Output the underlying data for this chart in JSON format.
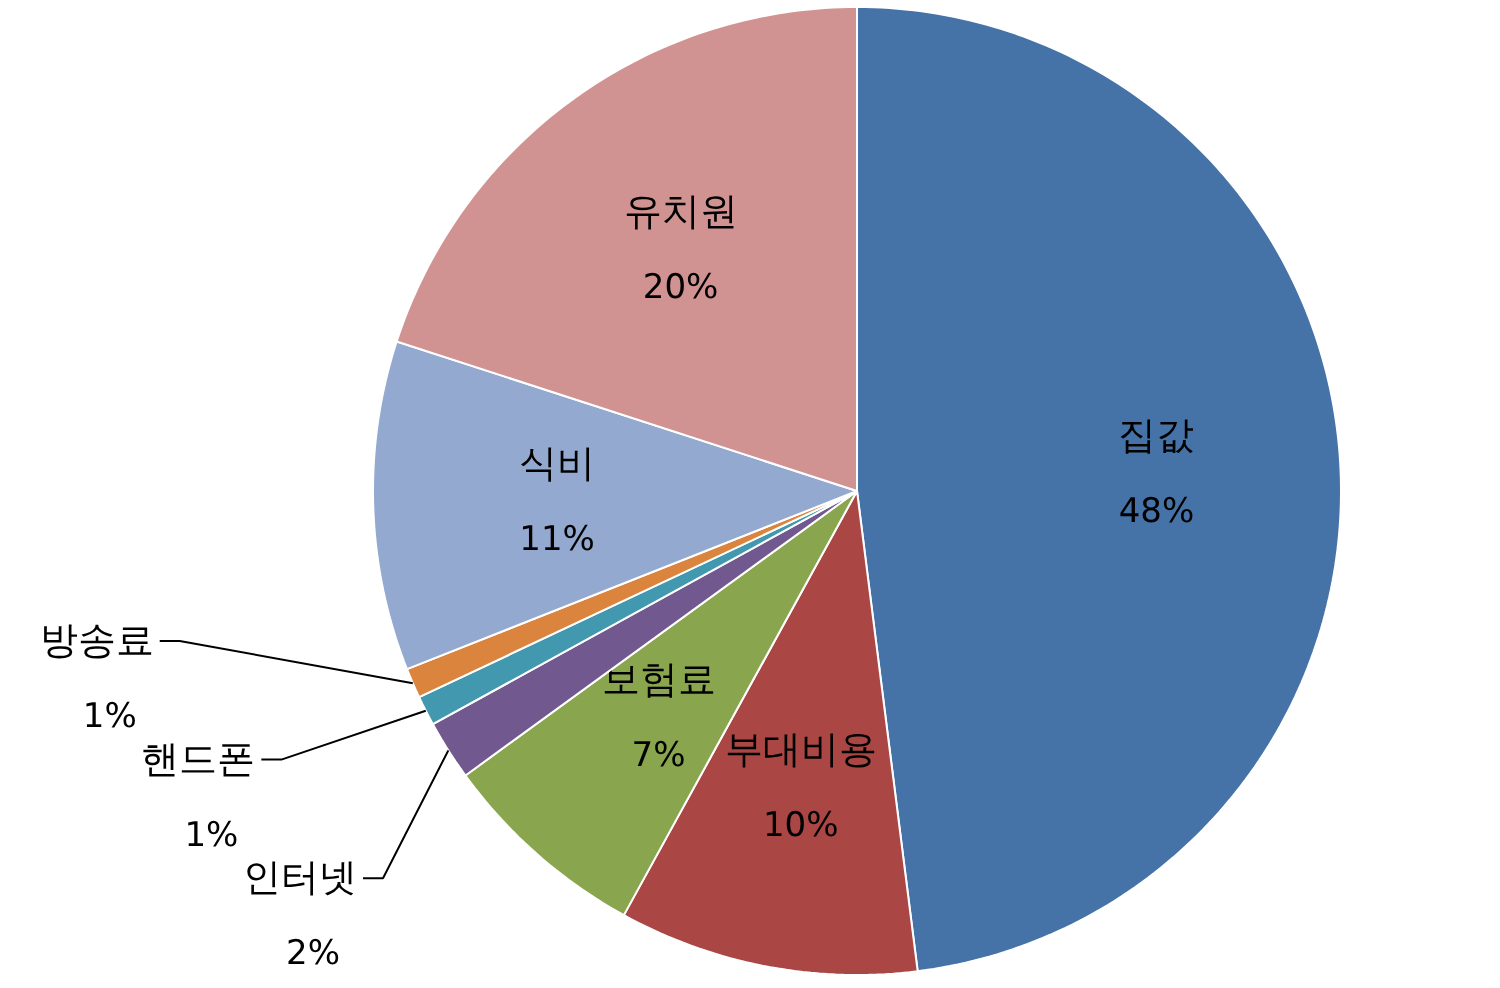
{
  "chart_data": {
    "type": "pie",
    "categories": [
      "집값",
      "부대비용",
      "보험료",
      "인터넷",
      "핸드폰",
      "방송료",
      "식비",
      "유치원"
    ],
    "values": [
      48,
      10,
      7,
      2,
      1,
      1,
      11,
      20
    ],
    "value_labels": [
      "48%",
      "10%",
      "7%",
      "2%",
      "1%",
      "1%",
      "11%",
      "20%"
    ],
    "colors": [
      "#4572a7",
      "#aa4643",
      "#89a54e",
      "#71588f",
      "#4198af",
      "#db843d",
      "#93a9cf",
      "#d19392"
    ]
  }
}
